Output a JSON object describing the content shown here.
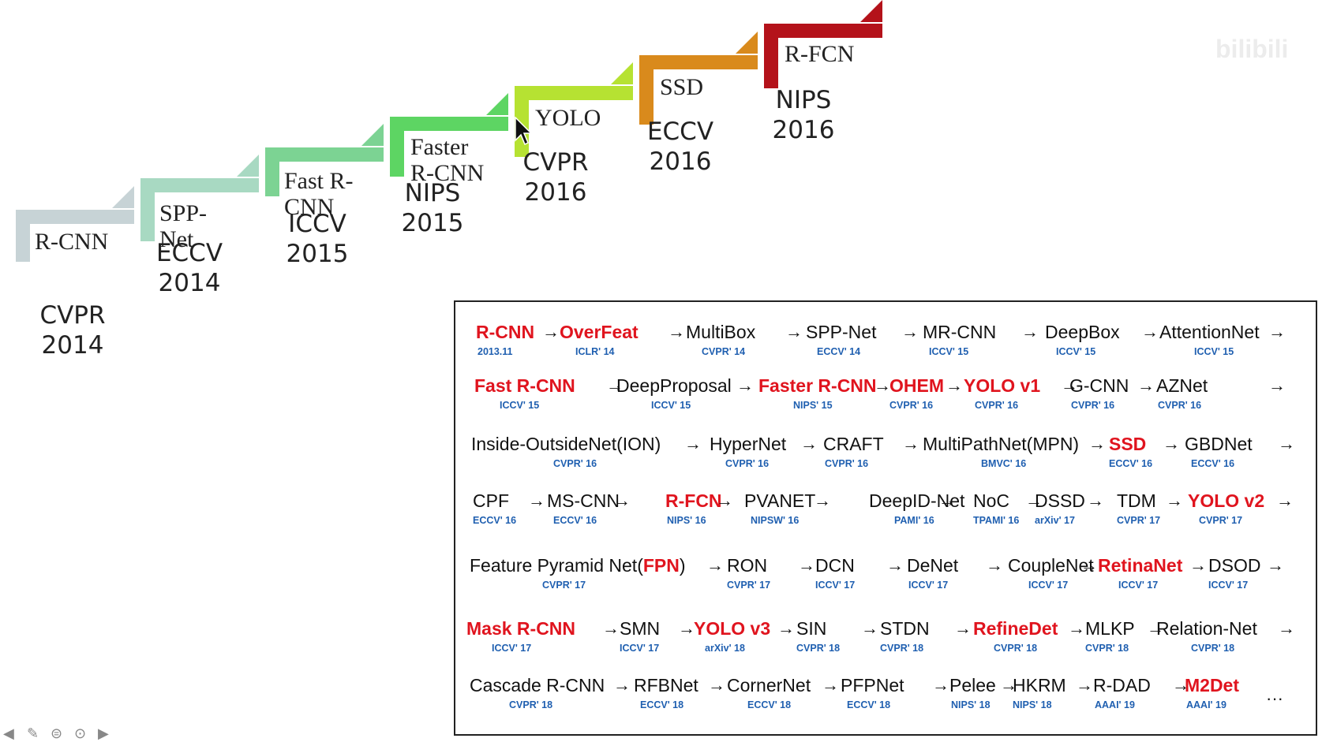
{
  "timeline": [
    {
      "name": "R-CNN",
      "venue": "CVPR\n2014",
      "color": "#c7d3d6"
    },
    {
      "name": "SPP-\nNet",
      "venue": "ECCV\n2014",
      "color": "#a8d9c2"
    },
    {
      "name": "Fast R-\nCNN",
      "venue": "ICCV\n2015",
      "color": "#7cd393"
    },
    {
      "name": "Faster\nR-CNN",
      "venue": "NIPS\n2015",
      "color": "#5dd563"
    },
    {
      "name": "YOLO",
      "venue": "CVPR\n2016",
      "color": "#b6e232"
    },
    {
      "name": "SSD",
      "venue": "ECCV\n2016",
      "color": "#d98a1c"
    },
    {
      "name": "R-FCN",
      "venue": "NIPS\n2016",
      "color": "#b4121a"
    }
  ],
  "watermark": "bilibili",
  "panel_rows": [
    [
      {
        "name": "R-CNN",
        "venue": "2013.11",
        "red": true
      },
      {
        "name": "OverFeat",
        "venue": "ICLR' 14",
        "red": true
      },
      {
        "name": "MultiBox",
        "venue": "CVPR' 14",
        "red": false
      },
      {
        "name": "SPP-Net",
        "venue": "ECCV' 14",
        "red": false
      },
      {
        "name": "MR-CNN",
        "venue": "ICCV' 15",
        "red": false
      },
      {
        "name": "DeepBox",
        "venue": "ICCV' 15",
        "red": false
      },
      {
        "name": "AttentionNet",
        "venue": "ICCV' 15",
        "red": false
      }
    ],
    [
      {
        "name": "Fast R-CNN",
        "venue": "ICCV' 15",
        "red": true
      },
      {
        "name": "DeepProposal",
        "venue": "ICCV' 15",
        "red": false
      },
      {
        "name": "Faster R-CNN",
        "venue": "NIPS' 15",
        "red": true
      },
      {
        "name": "OHEM",
        "venue": "CVPR' 16",
        "red": true
      },
      {
        "name": "YOLO v1",
        "venue": "CVPR' 16",
        "red": true
      },
      {
        "name": "G-CNN",
        "venue": "CVPR' 16",
        "red": false
      },
      {
        "name": "AZNet",
        "venue": "CVPR' 16",
        "red": false
      }
    ],
    [
      {
        "name": "Inside-OutsideNet(ION)",
        "venue": "CVPR' 16",
        "red": false
      },
      {
        "name": "HyperNet",
        "venue": "CVPR' 16",
        "red": false
      },
      {
        "name": "CRAFT",
        "venue": "CVPR' 16",
        "red": false
      },
      {
        "name": "MultiPathNet(MPN)",
        "venue": "BMVC' 16",
        "red": false
      },
      {
        "name": "SSD",
        "venue": "ECCV' 16",
        "red": true
      },
      {
        "name": "GBDNet",
        "venue": "ECCV' 16",
        "red": false
      }
    ],
    [
      {
        "name": "CPF",
        "venue": "ECCV' 16",
        "red": false
      },
      {
        "name": "MS-CNN",
        "venue": "ECCV' 16",
        "red": false
      },
      {
        "name": "R-FCN",
        "venue": "NIPS' 16",
        "red": true
      },
      {
        "name": "PVANET",
        "venue": "NIPSW' 16",
        "red": false
      },
      {
        "name": "DeepID-Net",
        "venue": "PAMI' 16",
        "red": false
      },
      {
        "name": "NoC",
        "venue": "TPAMI' 16",
        "red": false
      },
      {
        "name": "DSSD",
        "venue": "arXiv' 17",
        "red": false
      },
      {
        "name": "TDM",
        "venue": "CVPR' 17",
        "red": false
      },
      {
        "name": "YOLO v2",
        "venue": "CVPR' 17",
        "red": true
      }
    ],
    [
      {
        "name": "Feature Pyramid Net(",
        "name_red": "FPN",
        "name_tail": ")",
        "venue": "CVPR' 17",
        "red": false
      },
      {
        "name": "RON",
        "venue": "CVPR' 17",
        "red": false
      },
      {
        "name": "DCN",
        "venue": "ICCV' 17",
        "red": false
      },
      {
        "name": "DeNet",
        "venue": "ICCV' 17",
        "red": false
      },
      {
        "name": "CoupleNet",
        "venue": "ICCV' 17",
        "red": false
      },
      {
        "name": "RetinaNet",
        "venue": "ICCV' 17",
        "red": true
      },
      {
        "name": "DSOD",
        "venue": "ICCV' 17",
        "red": false
      }
    ],
    [
      {
        "name": "Mask R-CNN",
        "venue": "ICCV' 17",
        "red": true
      },
      {
        "name": "SMN",
        "venue": "ICCV' 17",
        "red": false
      },
      {
        "name": "YOLO v3",
        "venue": "arXiv' 18",
        "red": true
      },
      {
        "name": "SIN",
        "venue": "CVPR' 18",
        "red": false
      },
      {
        "name": "STDN",
        "venue": "CVPR' 18",
        "red": false
      },
      {
        "name": "RefineDet",
        "venue": "CVPR' 18",
        "red": true
      },
      {
        "name": "MLKP",
        "venue": "CVPR' 18",
        "red": false
      },
      {
        "name": "Relation-Net",
        "venue": "CVPR' 18",
        "red": false
      }
    ],
    [
      {
        "name": "Cascade R-CNN",
        "venue": "CVPR' 18",
        "red": false
      },
      {
        "name": "RFBNet",
        "venue": "ECCV' 18",
        "red": false
      },
      {
        "name": "CornerNet",
        "venue": "ECCV' 18",
        "red": false
      },
      {
        "name": "PFPNet",
        "venue": "ECCV' 18",
        "red": false
      },
      {
        "name": "Pelee",
        "venue": "NIPS' 18",
        "red": false
      },
      {
        "name": "HKRM",
        "venue": "NIPS' 18",
        "red": false
      },
      {
        "name": "R-DAD",
        "venue": "AAAI' 19",
        "red": false
      },
      {
        "name": "M2Det",
        "venue": "AAAI' 19",
        "red": true
      }
    ]
  ],
  "arrow_glyph": "→",
  "ellipsis": "···"
}
